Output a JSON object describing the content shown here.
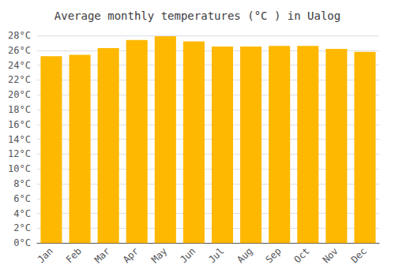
{
  "chart_data": {
    "type": "bar",
    "title": "Average monthly temperatures (°C ) in Ualog",
    "categories": [
      "Jan",
      "Feb",
      "Mar",
      "Apr",
      "May",
      "Jun",
      "Jul",
      "Aug",
      "Sep",
      "Oct",
      "Nov",
      "Dec"
    ],
    "values": [
      25.2,
      25.4,
      26.3,
      27.4,
      27.9,
      27.2,
      26.5,
      26.5,
      26.6,
      26.6,
      26.2,
      25.8
    ],
    "color": "#FFB800",
    "ylim": [
      0,
      28
    ],
    "yticks": [
      {
        "value": 0,
        "label": "0°C"
      },
      {
        "value": 2,
        "label": "2°C"
      },
      {
        "value": 4,
        "label": "4°C"
      },
      {
        "value": 6,
        "label": "6°C"
      },
      {
        "value": 8,
        "label": "8°C"
      },
      {
        "value": 10,
        "label": "10°C"
      },
      {
        "value": 12,
        "label": "12°C"
      },
      {
        "value": 14,
        "label": "14°C"
      },
      {
        "value": 16,
        "label": "16°C"
      },
      {
        "value": 18,
        "label": "18°C"
      },
      {
        "value": 20,
        "label": "20°C"
      },
      {
        "value": 22,
        "label": "22°C"
      },
      {
        "value": 24,
        "label": "24°C"
      },
      {
        "value": 26,
        "label": "26°C"
      },
      {
        "value": 28,
        "label": "28°C"
      }
    ],
    "grid": true
  }
}
